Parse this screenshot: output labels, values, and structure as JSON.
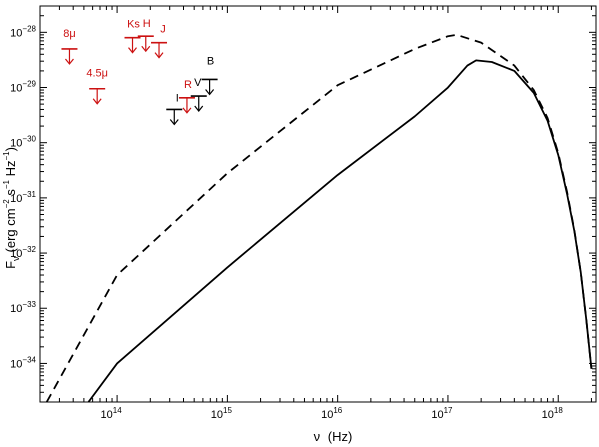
{
  "chart_data": {
    "type": "line",
    "x_scale": "log",
    "y_scale": "log",
    "xlim": [
      20000000000000.0,
      2.2e+18
    ],
    "ylim": [
      2e-35,
      3e-28
    ],
    "xlabel": {
      "base": "ν",
      "unit": "(Hz)"
    },
    "ylabel": {
      "base": "F",
      "sub": "ν",
      "unit_a": "(erg cm",
      "sup_a": "−2",
      "unit_b": " s",
      "sup_b": "−1",
      "unit_c": " Hz",
      "sup_c": "−1",
      "unit_d": ")"
    },
    "x_ticks": [
      {
        "value": 100000000000000.0,
        "base": "10",
        "exp": "14"
      },
      {
        "value": 1000000000000000.0,
        "base": "10",
        "exp": "15"
      },
      {
        "value": 1e+16,
        "base": "10",
        "exp": "16"
      },
      {
        "value": 1e+17,
        "base": "10",
        "exp": "17"
      },
      {
        "value": 1e+18,
        "base": "10",
        "exp": "18"
      }
    ],
    "y_ticks": [
      {
        "value": 1e-28,
        "base": "10",
        "exp": "−28"
      },
      {
        "value": 1e-29,
        "base": "10",
        "exp": "−29"
      },
      {
        "value": 1e-30,
        "base": "10",
        "exp": "−30"
      },
      {
        "value": 1e-31,
        "base": "10",
        "exp": "−31"
      },
      {
        "value": 1e-32,
        "base": "10",
        "exp": "−32"
      },
      {
        "value": 1e-33,
        "base": "10",
        "exp": "−33"
      },
      {
        "value": 1e-34,
        "base": "10",
        "exp": "−34"
      }
    ],
    "series": [
      {
        "style": "solid",
        "color": "#000000",
        "points": [
          [
            55000000000000.0,
            2e-35
          ],
          [
            100000000000000.0,
            1e-34
          ],
          [
            1000000000000000.0,
            5.5e-33
          ],
          [
            1e+16,
            2.6e-31
          ],
          [
            5e+16,
            3e-30
          ],
          [
            1e+17,
            1e-29
          ],
          [
            1.5e+17,
            2.5e-29
          ],
          [
            1.8e+17,
            3.1e-29
          ],
          [
            2.5e+17,
            2.9e-29
          ],
          [
            4e+17,
            2e-29
          ],
          [
            6e+17,
            8e-30
          ],
          [
            8e+17,
            2.5e-30
          ],
          [
            1e+18,
            6e-31
          ],
          [
            1.2e+18,
            1.2e-31
          ],
          [
            1.4e+18,
            2.5e-32
          ],
          [
            1.6e+18,
            4.5e-33
          ],
          [
            1.8e+18,
            6e-34
          ],
          [
            2e+18,
            8e-35
          ]
        ]
      },
      {
        "style": "dashed",
        "color": "#000000",
        "points": [
          [
            23000000000000.0,
            2e-35
          ],
          [
            100000000000000.0,
            4e-33
          ],
          [
            1000000000000000.0,
            2.8e-31
          ],
          [
            1e+16,
            1.1e-29
          ],
          [
            5e+16,
            5e-29
          ],
          [
            1e+17,
            8.5e-29
          ],
          [
            1.2e+17,
            9e-29
          ],
          [
            2e+17,
            6.5e-29
          ],
          [
            4e+17,
            2.5e-29
          ],
          [
            6e+17,
            9e-30
          ],
          [
            8e+17,
            2.8e-30
          ],
          [
            1e+18,
            6.5e-31
          ],
          [
            1.2e+18,
            1.3e-31
          ],
          [
            1.4e+18,
            2.6e-32
          ],
          [
            1.6e+18,
            4.5e-33
          ],
          [
            1.8e+18,
            6e-34
          ],
          [
            2e+18,
            8e-35
          ]
        ]
      }
    ],
    "upper_limits": [
      {
        "label": "8μ",
        "color": "#cc1111",
        "nu": 37000000000000.0,
        "flux": 5e-29,
        "label_dx": 0,
        "label_dy": -12
      },
      {
        "label": "4.5μ",
        "color": "#cc1111",
        "nu": 66000000000000.0,
        "flux": 9.5e-30,
        "label_dx": 0,
        "label_dy": -12
      },
      {
        "label": "Ks",
        "color": "#cc1111",
        "nu": 138000000000000.0,
        "flux": 8e-29,
        "label_dx": 1,
        "label_dy": -10
      },
      {
        "label": "H",
        "color": "#cc1111",
        "nu": 182000000000000.0,
        "flux": 8.5e-29,
        "label_dx": 1,
        "label_dy": -9
      },
      {
        "label": "J",
        "color": "#cc1111",
        "nu": 240000000000000.0,
        "flux": 6.5e-29,
        "label_dx": 4,
        "label_dy": -10
      },
      {
        "label": "I",
        "color": "#000000",
        "nu": 330000000000000.0,
        "flux": 4e-30,
        "label_dx": 3,
        "label_dy": -8
      },
      {
        "label": "R",
        "color": "#cc1111",
        "nu": 430000000000000.0,
        "flux": 6.5e-30,
        "label_dx": 1,
        "label_dy": -10
      },
      {
        "label": "V",
        "color": "#000000",
        "nu": 550000000000000.0,
        "flux": 7e-30,
        "label_dx": -1,
        "label_dy": -10
      },
      {
        "label": "B",
        "color": "#000000",
        "nu": 690000000000000.0,
        "flux": 1.4e-29,
        "label_dx": 1,
        "label_dy": -15
      }
    ]
  }
}
